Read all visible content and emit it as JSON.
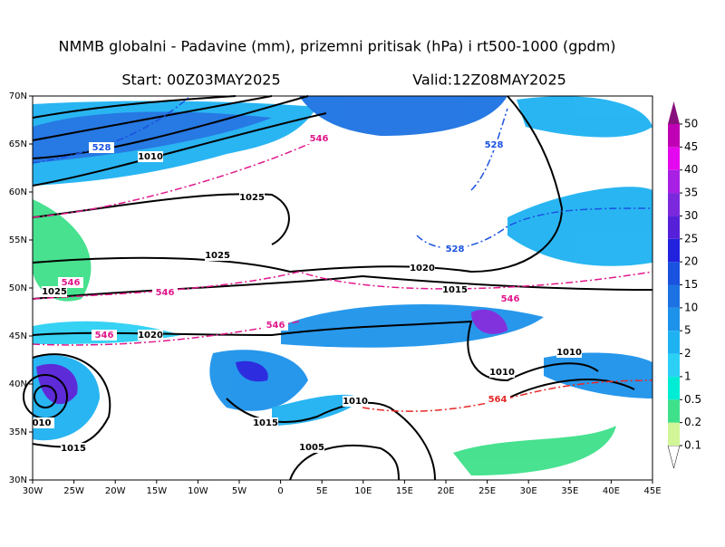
{
  "header": {
    "title": "NMMB globalni - Padavine (mm), prizemni pritisak (hPa) i rt500-1000 (gpdm)",
    "start": "Start: 00Z03MAY2025",
    "valid": "Valid:12Z08MAY2025"
  },
  "map": {
    "lon_ticks": [
      {
        "value": -30,
        "label": "30W"
      },
      {
        "value": -25,
        "label": "25W"
      },
      {
        "value": -20,
        "label": "20W"
      },
      {
        "value": -15,
        "label": "15W"
      },
      {
        "value": -10,
        "label": "10W"
      },
      {
        "value": -5,
        "label": "5W"
      },
      0,
      {
        "value": 5,
        "label": "5E"
      },
      {
        "value": 10,
        "label": "10E"
      },
      {
        "value": 15,
        "label": "15E"
      },
      {
        "value": 20,
        "label": "20E"
      },
      {
        "value": 25,
        "label": "25E"
      },
      {
        "value": 30,
        "label": "30E"
      },
      {
        "value": 35,
        "label": "35E"
      },
      {
        "value": 40,
        "label": "40E"
      },
      {
        "value": 45,
        "label": "45E"
      }
    ],
    "lat_ticks": [
      {
        "value": 30,
        "label": "30N"
      },
      {
        "value": 35,
        "label": "35N"
      },
      {
        "value": 40,
        "label": "40N"
      },
      {
        "value": 45,
        "label": "45N"
      },
      {
        "value": 50,
        "label": "50N"
      },
      {
        "value": 55,
        "label": "55N"
      },
      {
        "value": 60,
        "label": "60N"
      },
      {
        "value": 65,
        "label": "65N"
      },
      {
        "value": 70,
        "label": "70N"
      }
    ],
    "contour_labels": [
      "528",
      "1010",
      "546",
      "528",
      "1025",
      "1025",
      "528",
      "1020",
      "546",
      "1025",
      "546",
      "1015",
      "546",
      "546",
      "546",
      "1020",
      "1010",
      "1010",
      "564",
      "1010",
      "010",
      "1015",
      "1015",
      "1005"
    ]
  },
  "colorbar": {
    "levels": [
      0.1,
      0.2,
      0.5,
      1,
      2,
      5,
      10,
      15,
      20,
      25,
      30,
      35,
      40,
      45,
      50
    ],
    "colors": [
      "#d2f598",
      "#3ee08a",
      "#00ecd4",
      "#2cd0f4",
      "#1eb2f2",
      "#1c92ea",
      "#1c72e2",
      "#1a52e0",
      "#2222de",
      "#5620d8",
      "#7c28dc",
      "#a820e4",
      "#e408ee",
      "#c000b4",
      "#86107c"
    ]
  }
}
